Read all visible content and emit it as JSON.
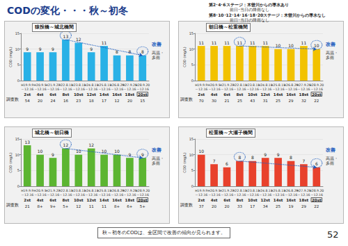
{
  "title": "CODの変化・・・秋～初冬",
  "notes": [
    [
      "第2･4･6ステージ：木曽川からの導水あり",
      "前日･当日の降雨なし"
    ],
    [
      "第8･10･12･14･16･18･20ステージ：木曽川からの導水なし",
      "前日･当日の降雨なし"
    ]
  ],
  "conclusion": "秋～初冬のCODは、全区間で改善の傾向が見られます。",
  "page": "52",
  "chart_data": [
    {
      "type": "bar",
      "title": "猿投橋～城北橋間",
      "categories": [
        "H19.9.9\n～12.16",
        "H20.9.5\n～12.16",
        "H21.9.27\n～12.16",
        "H22.8.11\n～12.16",
        "H23.8.11\n～12.16",
        "H24.8.11\n～12.16",
        "H25.8.11\n～12.16",
        "H26.8.29\n～12.16",
        "H27.9.25\n～12.16",
        "H28.9.20\n～12.16"
      ],
      "stages": [
        "2st",
        "4st",
        "6st",
        "8st",
        "10st",
        "12st",
        "14st",
        "16st",
        "18st",
        "20st"
      ],
      "survey_label": "調査数",
      "survey_counts": [
        54,
        20,
        24,
        16,
        23,
        18,
        17,
        12,
        20,
        15
      ],
      "values": [
        9,
        9,
        9,
        13,
        12,
        9,
        11,
        8,
        8,
        8
      ],
      "color": "#29b1e6",
      "y_label": "COD (mg/L)",
      "ylim": [
        0,
        15
      ],
      "yticks": [
        0,
        5,
        10,
        15
      ],
      "grid": true,
      "data_labels": true,
      "annotations": {
        "improvement": "改善",
        "condition": "高温・多雨"
      },
      "trend": {
        "from": "8st",
        "to": "20st"
      }
    },
    {
      "type": "bar",
      "title": "朝日橋～松重橋間",
      "categories": [
        "H19.9.9\n～12.16",
        "H20.9.5\n～12.16",
        "H21.9.27\n～12.16",
        "H22.8.11\n～12.16",
        "H23.8.11\n～12.16",
        "H24.8.11\n～12.16",
        "H25.8.11\n～12.16",
        "H26.8.29\n～12.16",
        "H27.9.25\n～12.16",
        "H28.9.20\n～12.16"
      ],
      "stages": [
        "2st",
        "4st",
        "6st",
        "8st",
        "10st",
        "12st",
        "14st",
        "16st",
        "18st",
        "20st"
      ],
      "survey_label": "調査数",
      "survey_counts": [
        70,
        30,
        21,
        25,
        43,
        31,
        25,
        29,
        32,
        22
      ],
      "values": [
        11,
        11,
        11,
        11,
        11,
        11,
        10,
        10,
        11,
        10
      ],
      "color": "#f2c200",
      "y_label": "COD (mg/L)",
      "ylim": [
        0,
        15
      ],
      "yticks": [
        0,
        5,
        10,
        15
      ],
      "grid": true,
      "data_labels": true,
      "annotations": {
        "improvement": "改善",
        "condition": "高温・多雨"
      },
      "trend": {
        "from": "8st",
        "to": "20st"
      }
    },
    {
      "type": "bar",
      "title": "城北橋～朝日橋",
      "categories": [
        "H19.9.9\n～12.16",
        "H20.9.5\n～12.16",
        "H21.9.27\n～12.16",
        "H22.8.11\n～12.16",
        "H23.8.11\n～12.16",
        "H24.8.11\n～12.16",
        "H25.8.11\n～12.16",
        "H26.8.29\n～12.16",
        "H27.9.25\n～12.16",
        "H28.9.20\n～12.16"
      ],
      "stages": [
        "2st",
        "4st",
        "6st",
        "8st",
        "10st",
        "12st",
        "14st",
        "16st",
        "18st",
        "20st"
      ],
      "survey_label": "調査数",
      "survey_counts": [
        "21",
        "8+",
        "9+",
        "5+",
        "12",
        "11",
        "11",
        "8+",
        "6+",
        "5+"
      ],
      "values": [
        13,
        10,
        9,
        12,
        10,
        12,
        10,
        10,
        9,
        9
      ],
      "color": "#5cb531",
      "y_label": "COD (mg/L)",
      "ylim": [
        0,
        15
      ],
      "yticks": [
        0,
        5,
        10,
        15
      ],
      "grid": true,
      "data_labels": true,
      "annotations": {
        "improvement": "改善",
        "condition": "高温・多雨"
      },
      "trend": {
        "from": "8st",
        "to": "20st"
      }
    },
    {
      "type": "bar",
      "title": "松重橋～大瀬子橋間",
      "categories": [
        "H19.9.9\n～12.16",
        "H20.9.5\n～12.16",
        "H21.9.27\n～12.16",
        "H22.8.11\n～12.16",
        "H23.8.11\n～12.16",
        "H24.8.11\n～12.16",
        "H25.8.11\n～12.16",
        "H26.8.29\n～12.16",
        "H27.9.25\n～12.16",
        "H28.9.20\n～12.16"
      ],
      "stages": [
        "2st",
        "4st",
        "6st",
        "8st",
        "10st",
        "12st",
        "14st",
        "16st",
        "18st",
        "20st"
      ],
      "survey_label": "調査数",
      "survey_counts": [
        37,
        20,
        20,
        33,
        17,
        34,
        25,
        19,
        29,
        22
      ],
      "values": [
        10,
        7,
        6,
        8,
        8,
        9,
        9,
        8,
        7,
        6
      ],
      "color": "#e8412c",
      "y_label": "COD (mg/L)",
      "ylim": [
        0,
        15
      ],
      "yticks": [
        0,
        5,
        10,
        15
      ],
      "grid": true,
      "data_labels": true,
      "annotations": {
        "improvement": "改善",
        "condition": "高温・多雨"
      },
      "trend": {
        "from": "8st",
        "to": "20st"
      }
    }
  ]
}
